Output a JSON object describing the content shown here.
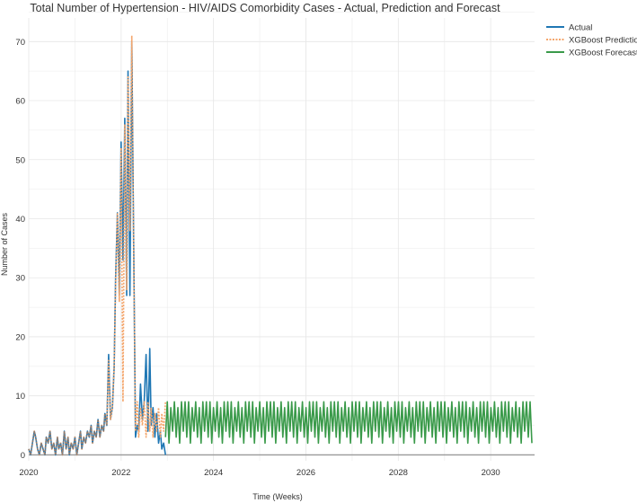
{
  "chart_data": {
    "type": "line",
    "title": "Total Number of Hypertension - HIV/AIDS Comorbidity Cases - Actual, Prediction and Forecast",
    "xlabel": "Time (Weeks)",
    "ylabel": "Number of Cases",
    "xlim": [
      2020.0,
      2030.95
    ],
    "ylim": [
      -1,
      74
    ],
    "xticks": [
      "2020",
      "2022",
      "2024",
      "2026",
      "2028",
      "2030"
    ],
    "yticks": [
      0,
      10,
      20,
      30,
      40,
      50,
      60,
      70
    ],
    "grid": true,
    "legend_position": "top-right",
    "colors": {
      "actual": "#1f77b4",
      "prediction": "#f4a56b",
      "forecast": "#3a9a4a",
      "zero_line": "#999999"
    },
    "series": [
      {
        "name": "Actual",
        "style": "solid",
        "x": [
          2020.0,
          2020.04,
          2020.08,
          2020.12,
          2020.15,
          2020.19,
          2020.23,
          2020.27,
          2020.31,
          2020.35,
          2020.38,
          2020.42,
          2020.46,
          2020.5,
          2020.54,
          2020.58,
          2020.62,
          2020.65,
          2020.69,
          2020.73,
          2020.77,
          2020.81,
          2020.85,
          2020.88,
          2020.92,
          2020.96,
          2021.0,
          2021.04,
          2021.08,
          2021.12,
          2021.15,
          2021.19,
          2021.23,
          2021.27,
          2021.31,
          2021.35,
          2021.38,
          2021.42,
          2021.46,
          2021.5,
          2021.54,
          2021.58,
          2021.62,
          2021.65,
          2021.69,
          2021.73,
          2021.77,
          2021.81,
          2021.85,
          2021.88,
          2021.92,
          2021.96,
          2022.0,
          2022.04,
          2022.08,
          2022.12,
          2022.15,
          2022.19,
          2022.23,
          2022.27,
          2022.31,
          2022.35,
          2022.38,
          2022.42,
          2022.46,
          2022.5,
          2022.54,
          2022.58,
          2022.62,
          2022.65,
          2022.69,
          2022.73,
          2022.77,
          2022.81,
          2022.85,
          2022.88,
          2022.92,
          2022.96
        ],
        "y": [
          1,
          0,
          2,
          4,
          3,
          1,
          0,
          2,
          1,
          0,
          3,
          2,
          4,
          1,
          2,
          0,
          3,
          1,
          2,
          0,
          4,
          1,
          3,
          0,
          2,
          1,
          3,
          0,
          2,
          4,
          1,
          3,
          2,
          4,
          3,
          5,
          2,
          4,
          3,
          6,
          3,
          5,
          4,
          7,
          5,
          17,
          6,
          8,
          15,
          30,
          41,
          27,
          53,
          33,
          57,
          27,
          65,
          27,
          70,
          37,
          3,
          5,
          4,
          12,
          6,
          9,
          17,
          4,
          18,
          5,
          8,
          3,
          7,
          2,
          4,
          1,
          2,
          0
        ]
      },
      {
        "name": "XGBoost Prediction",
        "style": "dotted",
        "x": [
          2020.0,
          2020.04,
          2020.08,
          2020.12,
          2020.15,
          2020.19,
          2020.23,
          2020.27,
          2020.31,
          2020.35,
          2020.38,
          2020.42,
          2020.46,
          2020.5,
          2020.54,
          2020.58,
          2020.62,
          2020.65,
          2020.69,
          2020.73,
          2020.77,
          2020.81,
          2020.85,
          2020.88,
          2020.92,
          2020.96,
          2021.0,
          2021.04,
          2021.08,
          2021.12,
          2021.15,
          2021.19,
          2021.23,
          2021.27,
          2021.31,
          2021.35,
          2021.38,
          2021.42,
          2021.46,
          2021.5,
          2021.54,
          2021.58,
          2021.62,
          2021.65,
          2021.69,
          2021.73,
          2021.77,
          2021.81,
          2021.85,
          2021.88,
          2021.92,
          2021.96,
          2022.0,
          2022.04,
          2022.08,
          2022.12,
          2022.15,
          2022.19,
          2022.23,
          2022.27,
          2022.31,
          2022.35,
          2022.38,
          2022.42,
          2022.46,
          2022.5,
          2022.54,
          2022.58,
          2022.62,
          2022.65,
          2022.69,
          2022.73,
          2022.77,
          2022.81,
          2022.85,
          2022.88,
          2022.92,
          2022.96
        ],
        "y": [
          1,
          0,
          2,
          4,
          3,
          1,
          0,
          2,
          1,
          0,
          3,
          2,
          4,
          1,
          2,
          0,
          3,
          1,
          2,
          0,
          4,
          1,
          3,
          0,
          2,
          1,
          3,
          0,
          2,
          4,
          1,
          3,
          2,
          4,
          3,
          5,
          2,
          4,
          3,
          6,
          3,
          5,
          4,
          7,
          5,
          16,
          6,
          8,
          15,
          29,
          41,
          26,
          52,
          9,
          56,
          28,
          64,
          38,
          71,
          36,
          4,
          9,
          3,
          8,
          5,
          9,
          3,
          9,
          4,
          8,
          3,
          7,
          4,
          8,
          3,
          7,
          4,
          9
        ]
      },
      {
        "name": "XGBoost Forecast",
        "style": "solid",
        "x_start": 2022.96,
        "x_step": 0.0385,
        "y_pattern": [
          3,
          9,
          2,
          8,
          4,
          9,
          3,
          8,
          2,
          9,
          4,
          9
        ],
        "points": 207
      }
    ]
  }
}
